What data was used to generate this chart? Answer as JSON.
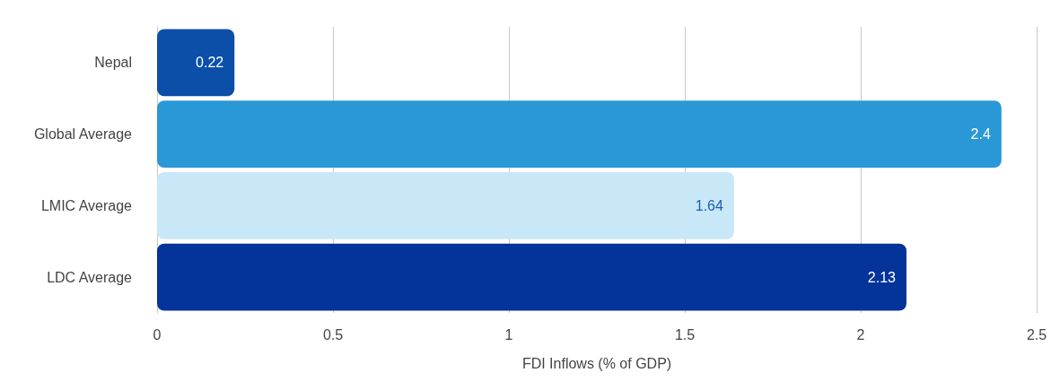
{
  "chart_data": {
    "type": "bar",
    "orientation": "horizontal",
    "xlabel": "FDI Inflows (% of GDP)",
    "categories": [
      "Nepal",
      "Global Average",
      "LMIC Average",
      "LDC Average"
    ],
    "values": [
      0.22,
      2.4,
      1.64,
      2.13
    ],
    "colors": [
      "#0b4fa8",
      "#2a98d6",
      "#c8e8f8",
      "#04339a"
    ],
    "xlim": [
      0,
      2.5
    ],
    "xticks": [
      0,
      0.5,
      1,
      1.5,
      2,
      2.5
    ],
    "grid": "x",
    "data_labels": true
  }
}
